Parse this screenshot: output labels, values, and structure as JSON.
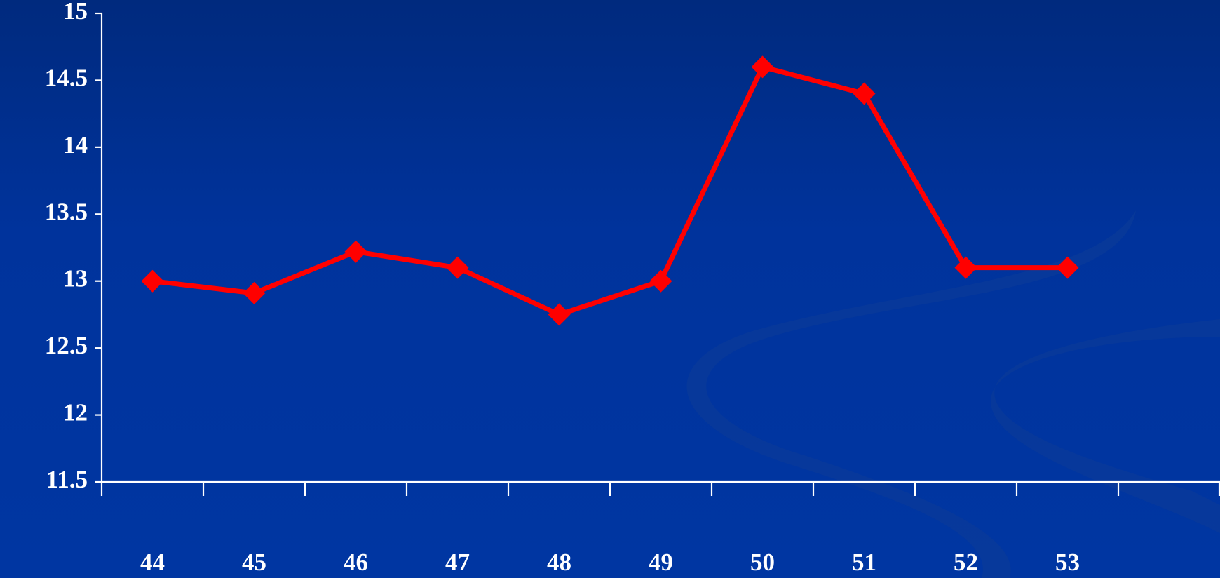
{
  "chart_data": {
    "type": "line",
    "categories": [
      "44",
      "45",
      "46",
      "47",
      "48",
      "49",
      "50",
      "51",
      "52",
      "53",
      null
    ],
    "values": [
      13,
      12.91,
      13.22,
      13.1,
      12.75,
      13,
      14.6,
      14.4,
      13.1,
      13.1,
      null
    ],
    "color": "#ff0000",
    "ylim": [
      11.5,
      15
    ],
    "yticks": [
      11.5,
      12,
      12.5,
      13,
      13.5,
      14,
      14.5,
      15
    ],
    "grid": false
  }
}
